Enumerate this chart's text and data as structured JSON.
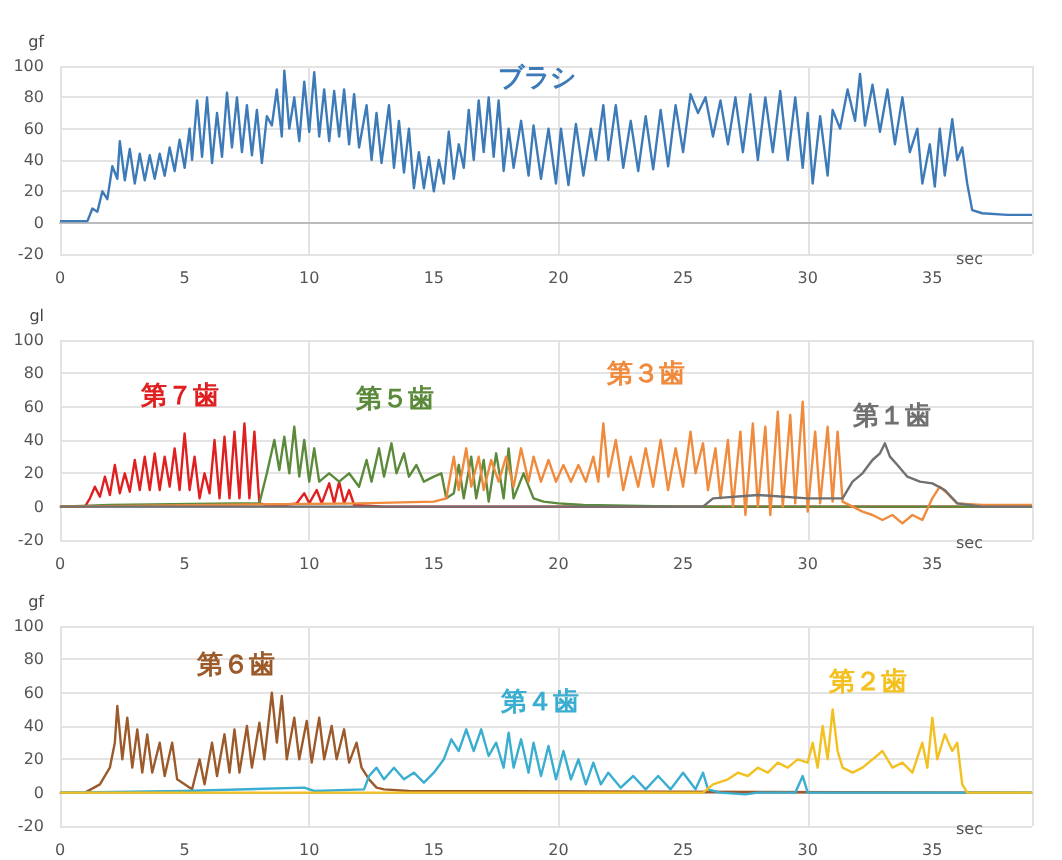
{
  "chart_data": [
    {
      "type": "line",
      "ylabel": "gf",
      "xlabel": "sec",
      "xlim": [
        0,
        39
      ],
      "xticks": [
        0,
        5,
        10,
        15,
        20,
        25,
        30,
        35
      ],
      "ylim": [
        -20,
        100
      ],
      "yticks": [
        -20,
        0,
        20,
        40,
        60,
        80,
        100
      ],
      "grid": true,
      "legend": false,
      "marker": "none",
      "series": [
        {
          "name": "ブラシ",
          "color": "#3d7ab8",
          "x": [
            0,
            1.1,
            1.3,
            1.5,
            1.7,
            1.9,
            2.1,
            2.3,
            2.4,
            2.6,
            2.8,
            3.0,
            3.2,
            3.4,
            3.6,
            3.8,
            4.0,
            4.2,
            4.4,
            4.6,
            4.8,
            5.0,
            5.2,
            5.3,
            5.5,
            5.7,
            5.9,
            6.1,
            6.3,
            6.5,
            6.7,
            6.9,
            7.1,
            7.3,
            7.5,
            7.7,
            7.9,
            8.1,
            8.3,
            8.5,
            8.7,
            8.9,
            9.0,
            9.2,
            9.4,
            9.6,
            9.8,
            10.0,
            10.2,
            10.4,
            10.6,
            10.8,
            11.0,
            11.2,
            11.4,
            11.6,
            11.8,
            12.0,
            12.3,
            12.5,
            12.7,
            12.9,
            13.2,
            13.4,
            13.6,
            13.8,
            14.0,
            14.2,
            14.4,
            14.6,
            14.8,
            15.0,
            15.2,
            15.4,
            15.6,
            15.8,
            16.0,
            16.2,
            16.4,
            16.6,
            16.8,
            17.0,
            17.2,
            17.4,
            17.6,
            17.8,
            18.0,
            18.2,
            18.5,
            18.8,
            19.0,
            19.3,
            19.6,
            19.9,
            20.1,
            20.4,
            20.7,
            21.0,
            21.3,
            21.5,
            21.8,
            22.0,
            22.3,
            22.6,
            22.9,
            23.2,
            23.5,
            23.8,
            24.1,
            24.4,
            24.7,
            25.0,
            25.3,
            25.6,
            25.9,
            26.2,
            26.5,
            26.8,
            27.1,
            27.4,
            27.7,
            28.0,
            28.3,
            28.6,
            28.9,
            29.2,
            29.5,
            29.8,
            30.0,
            30.2,
            30.5,
            30.8,
            31.0,
            31.3,
            31.6,
            31.9,
            32.1,
            32.3,
            32.6,
            32.9,
            33.2,
            33.5,
            33.8,
            34.1,
            34.4,
            34.6,
            34.9,
            35.1,
            35.3,
            35.5,
            35.8,
            36.0,
            36.2,
            36.4,
            36.6,
            37.0,
            38,
            39
          ],
          "values": [
            1,
            1,
            9,
            7,
            20,
            15,
            36,
            28,
            52,
            27,
            47,
            25,
            44,
            27,
            43,
            28,
            44,
            30,
            48,
            33,
            53,
            35,
            60,
            40,
            78,
            42,
            80,
            38,
            70,
            42,
            83,
            48,
            80,
            45,
            75,
            43,
            72,
            38,
            68,
            62,
            85,
            55,
            97,
            60,
            80,
            52,
            90,
            58,
            96,
            55,
            85,
            52,
            84,
            55,
            85,
            50,
            82,
            48,
            75,
            40,
            70,
            38,
            75,
            35,
            65,
            32,
            60,
            22,
            45,
            22,
            42,
            20,
            40,
            25,
            58,
            28,
            50,
            35,
            72,
            40,
            78,
            45,
            80,
            42,
            78,
            33,
            60,
            35,
            65,
            30,
            62,
            28,
            60,
            25,
            60,
            24,
            63,
            30,
            60,
            40,
            75,
            40,
            75,
            35,
            65,
            33,
            68,
            34,
            72,
            36,
            75,
            45,
            82,
            70,
            80,
            55,
            78,
            50,
            80,
            45,
            82,
            40,
            80,
            45,
            84,
            40,
            80,
            35,
            70,
            25,
            68,
            30,
            72,
            60,
            85,
            65,
            95,
            62,
            88,
            58,
            85,
            50,
            80,
            45,
            60,
            25,
            50,
            23,
            60,
            30,
            66,
            40,
            48,
            25,
            8,
            6,
            5,
            5
          ]
        }
      ]
    },
    {
      "type": "line",
      "ylabel": "gl",
      "xlabel": "sec",
      "xlim": [
        0,
        39
      ],
      "xticks": [
        0,
        5,
        10,
        15,
        20,
        25,
        30,
        35
      ],
      "ylim": [
        -20,
        100
      ],
      "yticks": [
        -20,
        0,
        20,
        40,
        60,
        80,
        100
      ],
      "grid": true,
      "legend": false,
      "marker": "none",
      "series": [
        {
          "name": "第７歯",
          "color": "#e02020",
          "x": [
            0,
            1.0,
            1.2,
            1.4,
            1.6,
            1.8,
            2.0,
            2.2,
            2.4,
            2.6,
            2.8,
            3.0,
            3.2,
            3.4,
            3.6,
            3.8,
            4.0,
            4.2,
            4.4,
            4.6,
            4.8,
            5.0,
            5.2,
            5.4,
            5.6,
            5.8,
            6.0,
            6.2,
            6.4,
            6.6,
            6.8,
            7.0,
            7.2,
            7.4,
            7.6,
            7.8,
            8.0,
            8.3,
            9.0,
            9.5,
            9.8,
            10.0,
            10.3,
            10.5,
            10.8,
            11.0,
            11.2,
            11.4,
            11.6,
            11.8,
            13,
            39
          ],
          "values": [
            0,
            0,
            5,
            12,
            6,
            18,
            7,
            25,
            8,
            20,
            9,
            28,
            10,
            30,
            10,
            32,
            10,
            30,
            12,
            35,
            10,
            44,
            10,
            30,
            5,
            20,
            8,
            40,
            5,
            42,
            5,
            45,
            5,
            50,
            5,
            45,
            2,
            1,
            1,
            2,
            8,
            2,
            10,
            2,
            14,
            2,
            15,
            2,
            10,
            1,
            0,
            0
          ]
        },
        {
          "name": "第５歯",
          "color": "#5a8a3a",
          "x": [
            0,
            2,
            7,
            8,
            8.3,
            8.6,
            8.8,
            9.0,
            9.2,
            9.4,
            9.6,
            9.8,
            10.0,
            10.2,
            10.4,
            10.8,
            11.2,
            11.6,
            12.0,
            12.3,
            12.5,
            12.8,
            13.0,
            13.3,
            13.5,
            13.8,
            14.0,
            14.3,
            14.6,
            15.0,
            15.3,
            15.5,
            15.8,
            16.0,
            16.2,
            16.5,
            16.7,
            17.0,
            17.2,
            17.5,
            17.8,
            18.0,
            18.2,
            18.6,
            19.0,
            19.4,
            20,
            21,
            25,
            39
          ],
          "values": [
            0,
            1,
            2,
            2,
            20,
            40,
            22,
            42,
            20,
            48,
            18,
            40,
            15,
            35,
            15,
            20,
            15,
            20,
            12,
            28,
            15,
            35,
            18,
            38,
            20,
            32,
            18,
            25,
            15,
            18,
            20,
            5,
            8,
            25,
            5,
            30,
            5,
            28,
            3,
            32,
            5,
            35,
            5,
            20,
            5,
            3,
            2,
            1,
            0,
            0
          ]
        },
        {
          "name": "第３歯",
          "color": "#f08a3c",
          "x": [
            0,
            12,
            15,
            15.5,
            15.8,
            16.0,
            16.3,
            16.5,
            16.8,
            17.0,
            17.3,
            17.6,
            17.9,
            18.2,
            18.5,
            18.8,
            19.0,
            19.3,
            19.6,
            19.9,
            20.2,
            20.5,
            20.8,
            21.1,
            21.4,
            21.6,
            21.8,
            22.0,
            22.3,
            22.6,
            22.9,
            23.2,
            23.5,
            23.8,
            24.1,
            24.4,
            24.7,
            25.0,
            25.3,
            25.5,
            25.8,
            26.0,
            26.3,
            26.5,
            26.8,
            27.0,
            27.3,
            27.5,
            27.8,
            28.0,
            28.3,
            28.5,
            28.8,
            29.0,
            29.3,
            29.5,
            29.8,
            30.0,
            30.3,
            30.5,
            30.8,
            31.0,
            31.2,
            31.4,
            31.8,
            32.2,
            32.6,
            33.0,
            33.4,
            33.8,
            34.2,
            34.6,
            35.0,
            35.3,
            35.6,
            36.0,
            37,
            39
          ],
          "values": [
            0,
            2,
            3,
            5,
            30,
            10,
            35,
            12,
            30,
            10,
            28,
            15,
            30,
            12,
            35,
            15,
            30,
            15,
            28,
            15,
            25,
            15,
            25,
            15,
            30,
            15,
            50,
            18,
            40,
            10,
            30,
            12,
            35,
            12,
            40,
            10,
            35,
            12,
            45,
            20,
            38,
            10,
            35,
            5,
            40,
            0,
            45,
            -5,
            50,
            0,
            48,
            -5,
            57,
            0,
            55,
            2,
            63,
            -3,
            45,
            2,
            48,
            3,
            45,
            3,
            0,
            -3,
            -5,
            -8,
            -5,
            -10,
            -5,
            -8,
            5,
            12,
            8,
            2,
            1,
            1
          ]
        },
        {
          "name": "第１歯",
          "color": "#707070",
          "x": [
            0,
            25.8,
            26.2,
            28,
            30,
            31.4,
            31.8,
            32.2,
            32.6,
            32.9,
            33.1,
            33.3,
            33.6,
            34.0,
            34.5,
            35.0,
            35.5,
            36.0,
            37,
            39
          ],
          "values": [
            0,
            0,
            5,
            7,
            5,
            5,
            15,
            20,
            28,
            32,
            38,
            30,
            25,
            18,
            15,
            14,
            10,
            2,
            0,
            0
          ]
        }
      ]
    },
    {
      "type": "line",
      "ylabel": "gf",
      "xlabel": "sec",
      "xlim": [
        0,
        39
      ],
      "xticks": [
        0,
        5,
        10,
        15,
        20,
        25,
        30,
        35
      ],
      "ylim": [
        -20,
        100
      ],
      "yticks": [
        -20,
        0,
        20,
        40,
        60,
        80,
        100
      ],
      "grid": true,
      "legend": false,
      "marker": "none",
      "series": [
        {
          "name": "第６歯",
          "color": "#9c5a2a",
          "x": [
            0,
            1.0,
            1.6,
            2.0,
            2.2,
            2.3,
            2.5,
            2.7,
            2.9,
            3.1,
            3.3,
            3.5,
            3.7,
            4.0,
            4.2,
            4.5,
            4.7,
            5.0,
            5.3,
            5.6,
            5.8,
            6.1,
            6.3,
            6.6,
            6.8,
            7.0,
            7.2,
            7.5,
            7.7,
            8.0,
            8.2,
            8.5,
            8.7,
            8.9,
            9.1,
            9.4,
            9.6,
            9.9,
            10.1,
            10.4,
            10.6,
            10.9,
            11.1,
            11.4,
            11.6,
            11.9,
            12.1,
            12.4,
            12.7,
            13.0,
            14,
            39
          ],
          "values": [
            0,
            0,
            5,
            15,
            30,
            52,
            20,
            45,
            15,
            38,
            12,
            35,
            12,
            30,
            10,
            30,
            8,
            5,
            2,
            20,
            5,
            30,
            10,
            35,
            12,
            38,
            12,
            40,
            15,
            42,
            20,
            60,
            30,
            58,
            20,
            45,
            20,
            43,
            18,
            45,
            20,
            40,
            20,
            38,
            18,
            30,
            15,
            8,
            3,
            2,
            1,
            0
          ]
        },
        {
          "name": "第４歯",
          "color": "#3aaed0",
          "x": [
            0,
            5,
            9.8,
            10.2,
            12.2,
            12.4,
            12.7,
            13,
            13.4,
            13.8,
            14.2,
            14.6,
            15.0,
            15.4,
            15.7,
            16,
            16.3,
            16.6,
            16.9,
            17.2,
            17.5,
            17.8,
            18.0,
            18.2,
            18.5,
            18.8,
            19.0,
            19.3,
            19.6,
            19.9,
            20.2,
            20.5,
            20.8,
            21.1,
            21.4,
            21.7,
            22.0,
            22.5,
            23.0,
            23.5,
            24.0,
            24.5,
            25.0,
            25.5,
            25.8,
            26.0,
            26.5,
            27.5,
            28,
            29.5,
            29.8,
            30.0,
            31,
            39
          ],
          "values": [
            0,
            1,
            3,
            1,
            2,
            10,
            15,
            8,
            15,
            8,
            12,
            6,
            12,
            20,
            32,
            25,
            38,
            25,
            38,
            22,
            30,
            15,
            36,
            15,
            32,
            12,
            30,
            10,
            28,
            8,
            25,
            8,
            20,
            5,
            18,
            5,
            12,
            3,
            10,
            2,
            10,
            2,
            12,
            2,
            12,
            2,
            0,
            -1,
            0,
            0,
            10,
            0,
            0,
            0
          ]
        },
        {
          "name": "第２歯",
          "color": "#f4c020",
          "x": [
            0,
            25.8,
            26.2,
            26.8,
            27.2,
            27.6,
            28.0,
            28.4,
            28.8,
            29.2,
            29.6,
            30.0,
            30.2,
            30.4,
            30.6,
            30.8,
            31.0,
            31.2,
            31.4,
            31.8,
            32.2,
            32.6,
            33.0,
            33.4,
            33.8,
            34.2,
            34.6,
            34.8,
            35.0,
            35.2,
            35.5,
            35.8,
            36.0,
            36.2,
            36.4,
            39
          ],
          "values": [
            0,
            0,
            5,
            8,
            12,
            10,
            15,
            12,
            18,
            15,
            20,
            18,
            30,
            15,
            40,
            20,
            50,
            25,
            15,
            12,
            15,
            20,
            25,
            15,
            18,
            12,
            30,
            15,
            45,
            20,
            35,
            25,
            30,
            5,
            0,
            0
          ]
        }
      ]
    }
  ]
}
